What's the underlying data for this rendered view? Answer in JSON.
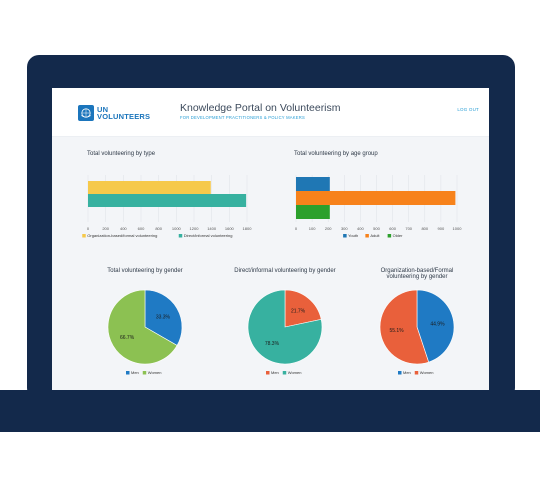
{
  "header": {
    "brand": {
      "line1": "UN",
      "line2": "VOLUNTEERS"
    },
    "title": "Knowledge Portal on Volunteerism",
    "subtitle": "FOR DEVELOPMENT PRACTITIONERS & POLICY MAKERS",
    "logout_label": "LOG OUT"
  },
  "colors": {
    "frame": "#13294b",
    "accent": "#1b75bc",
    "yellow": "#f6c94a",
    "teal": "#37b1a0",
    "blue": "#1f77b4",
    "orange": "#f7821b",
    "green": "#2ca02c",
    "men_blue": "#1f7ac4",
    "women_green": "#8cc152",
    "men_orange": "#e9603b",
    "women_teal": "#37b1a0"
  },
  "chart_data": [
    {
      "id": "by_type",
      "type": "bar",
      "orientation": "horizontal",
      "title": "Total volunteering by type",
      "series": [
        {
          "name": "Organization-based/formal volunteering",
          "value": 1390,
          "color": "#f6c94a"
        },
        {
          "name": "Direct/informal volunteering",
          "value": 1790,
          "color": "#37b1a0"
        }
      ],
      "xlim": [
        0,
        1800
      ],
      "xticks": [
        "0",
        "200",
        "400",
        "600",
        "800",
        "1000",
        "1200",
        "1400",
        "1600",
        "1800"
      ],
      "grid": true,
      "legend": "bottom"
    },
    {
      "id": "by_age",
      "type": "bar",
      "orientation": "horizontal",
      "title": "Total volunteering by age group",
      "series": [
        {
          "name": "Youth",
          "value": 210,
          "color": "#1f77b4"
        },
        {
          "name": "Adult",
          "value": 990,
          "color": "#f7821b"
        },
        {
          "name": "Older",
          "value": 210,
          "color": "#2ca02c"
        }
      ],
      "xlim": [
        0,
        1000
      ],
      "xticks": [
        "0",
        "100",
        "200",
        "300",
        "400",
        "500",
        "600",
        "700",
        "800",
        "900",
        "1000"
      ],
      "grid": true,
      "legend": "bottom"
    },
    {
      "id": "gender_total",
      "type": "pie",
      "title": "Total volunteering by gender",
      "slices": [
        {
          "name": "Men",
          "value": 33.3,
          "label": "33.3%",
          "color": "#1f7ac4"
        },
        {
          "name": "Women",
          "value": 66.7,
          "label": "66.7%",
          "color": "#8cc152"
        }
      ],
      "legend": "bottom"
    },
    {
      "id": "gender_direct",
      "type": "pie",
      "title": "Direct/informal volunteering by gender",
      "slices": [
        {
          "name": "Men",
          "value": 21.7,
          "label": "21.7%",
          "color": "#e9603b"
        },
        {
          "name": "Women",
          "value": 78.3,
          "label": "78.3%",
          "color": "#37b1a0"
        }
      ],
      "legend": "bottom"
    },
    {
      "id": "gender_org",
      "type": "pie",
      "title": "Organization-based/Formal volunteering by gender",
      "slices": [
        {
          "name": "Men",
          "value": 44.9,
          "label": "44.9%",
          "color": "#1f7ac4"
        },
        {
          "name": "Women",
          "value": 55.1,
          "label": "55.1%",
          "color": "#e9603b"
        }
      ],
      "legend": "bottom"
    }
  ]
}
